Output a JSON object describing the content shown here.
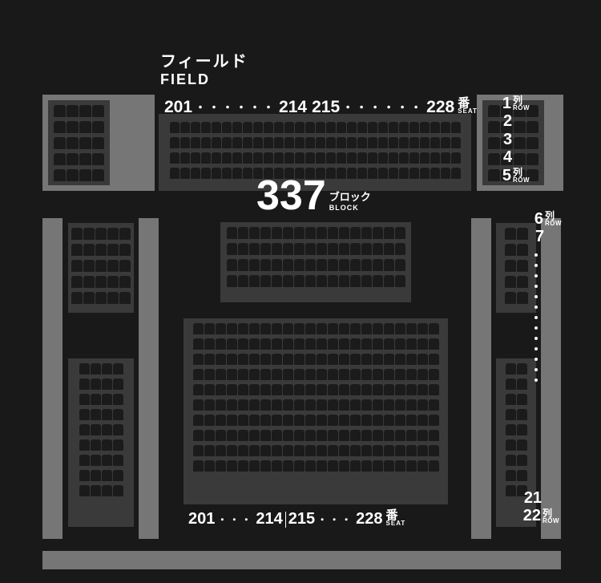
{
  "field": {
    "jp": "フィールド",
    "en": "FIELD"
  },
  "block": {
    "number": "337",
    "unit_jp": "ブロック",
    "unit_en": "BLOCK"
  },
  "seat_top": {
    "a": "201",
    "b": "214",
    "c": "215",
    "d": "228",
    "unit_jp": "番",
    "unit_en": "SEAT",
    "dots_left": "・・・・・・",
    "dots_right": "・・・・・・"
  },
  "seat_bottom": {
    "a": "201",
    "b": "214",
    "c": "215",
    "d": "228",
    "unit_jp": "番",
    "unit_en": "SEAT",
    "dots_left": "・・・",
    "dots_right": "・・・"
  },
  "rows_upper": [
    "1",
    "2",
    "3",
    "4",
    "5"
  ],
  "rows_upper_unit_at": [
    0,
    4
  ],
  "row_unit": {
    "jp": "列",
    "en": "ROW"
  },
  "rows_mid_start": [
    "6",
    "7"
  ],
  "rows_mid_end": [
    "21",
    "22"
  ],
  "row_dots_count": 13,
  "colors": {
    "bg": "#191919",
    "struct": "#767676",
    "section_bg": "#3a3a3a",
    "seat": "#1b1b1b",
    "text": "#ffffff"
  },
  "seat_sections": {
    "upper_main": {
      "rows": 4,
      "seats_per_row": 28,
      "seat_w": 12,
      "seat_h": 14
    },
    "upper_left": {
      "rows": 5,
      "seats_per_row": 4,
      "seat_w": 15,
      "seat_h": 15
    },
    "upper_right": {
      "rows": 5,
      "seats_per_row": 4,
      "seat_w": 15,
      "seat_h": 15
    },
    "middle_main": {
      "rows": 4,
      "seats_per_row": 16,
      "seat_w": 13,
      "seat_h": 15
    },
    "middle_left": {
      "rows": 5,
      "seats_per_row": 5,
      "seat_w": 14,
      "seat_h": 15
    },
    "middle_right": {
      "rows": 5,
      "seats_per_row": 5,
      "seat_w": 14,
      "seat_h": 15
    },
    "lower_main": {
      "rows": 10,
      "seats_per_row": 22,
      "seat_w": 13,
      "seat_h": 14
    },
    "lower_left": {
      "rows": 10,
      "seats_per_row": 3,
      "seat_w": 13,
      "seat_h": 14
    },
    "lower_right": {
      "rows": 10,
      "seats_per_row": 3,
      "seat_w": 13,
      "seat_h": 14
    }
  }
}
